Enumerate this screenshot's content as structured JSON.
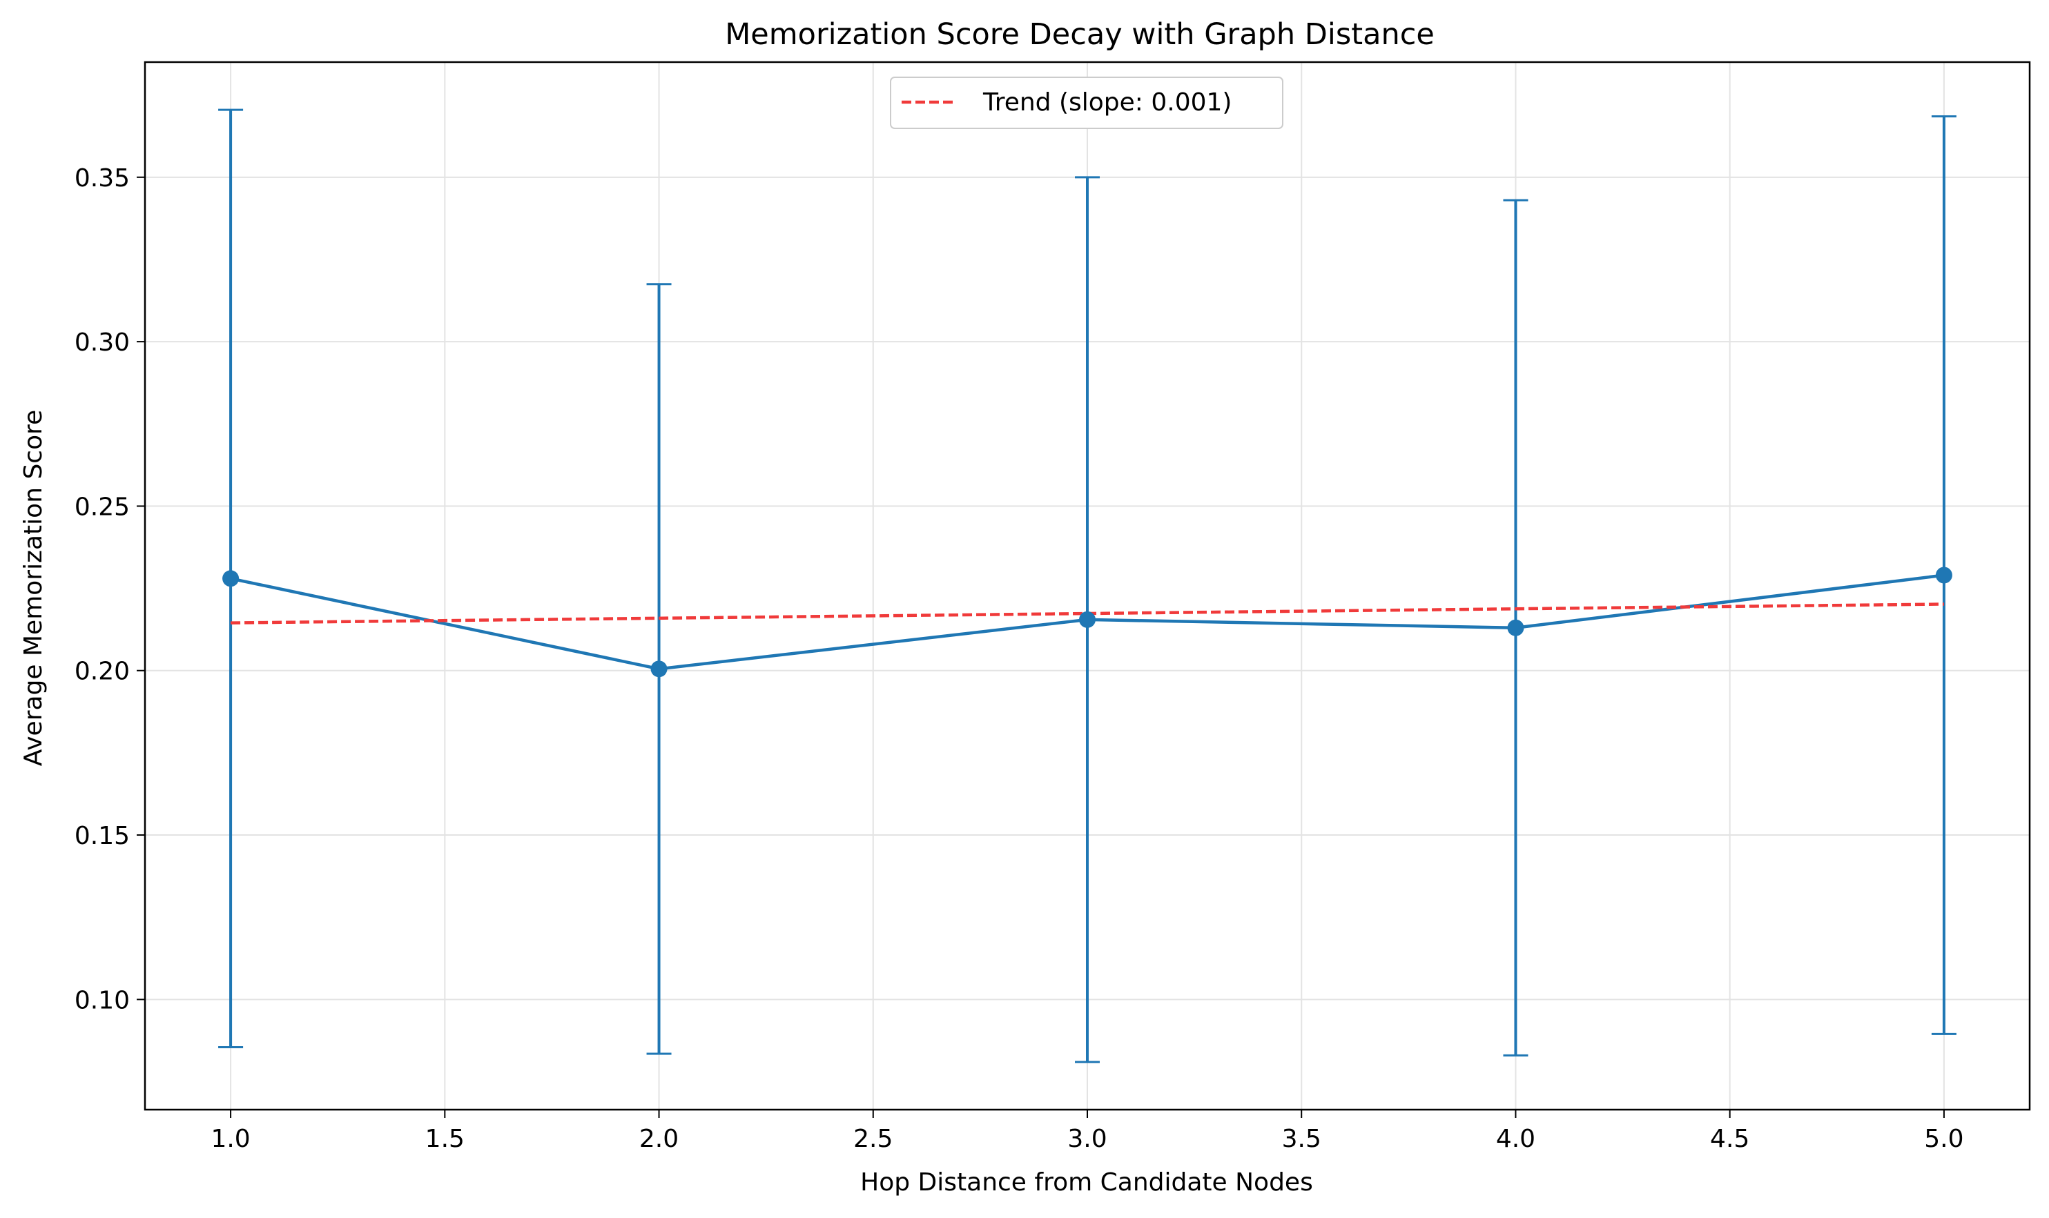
{
  "chart_data": {
    "type": "line",
    "title": "Memorization Score Decay with Graph Distance",
    "xlabel": "Hop Distance from Candidate Nodes",
    "ylabel": "Average Memorization Score",
    "xlim": [
      0.8,
      5.2
    ],
    "ylim": [
      0.0665,
      0.385
    ],
    "x_ticks": [
      1.0,
      1.5,
      2.0,
      2.5,
      3.0,
      3.5,
      4.0,
      4.5,
      5.0
    ],
    "x_tick_labels": [
      "1.0",
      "1.5",
      "2.0",
      "2.5",
      "3.0",
      "3.5",
      "4.0",
      "4.5",
      "5.0"
    ],
    "y_ticks": [
      0.1,
      0.15,
      0.2,
      0.25,
      0.3,
      0.35
    ],
    "y_tick_labels": [
      "0.10",
      "0.15",
      "0.20",
      "0.25",
      "0.30",
      "0.35"
    ],
    "grid": true,
    "legend_position": "top-center",
    "series": [
      {
        "x": [
          1,
          2,
          3,
          4,
          5
        ],
        "y": [
          0.228,
          0.2005,
          0.2155,
          0.213,
          0.229
        ],
        "yerr_low": [
          0.0855,
          0.0835,
          0.081,
          0.083,
          0.0895
        ],
        "yerr_high": [
          0.3705,
          0.3175,
          0.35,
          0.343,
          0.3685
        ],
        "color": "#1f77b4",
        "style": "solid",
        "marker": "circle"
      },
      {
        "name": "Trend (slope: 0.001)",
        "x": [
          1,
          5
        ],
        "y": [
          0.2145,
          0.2202
        ],
        "color": "#f03a3a",
        "style": "dashed"
      }
    ]
  }
}
